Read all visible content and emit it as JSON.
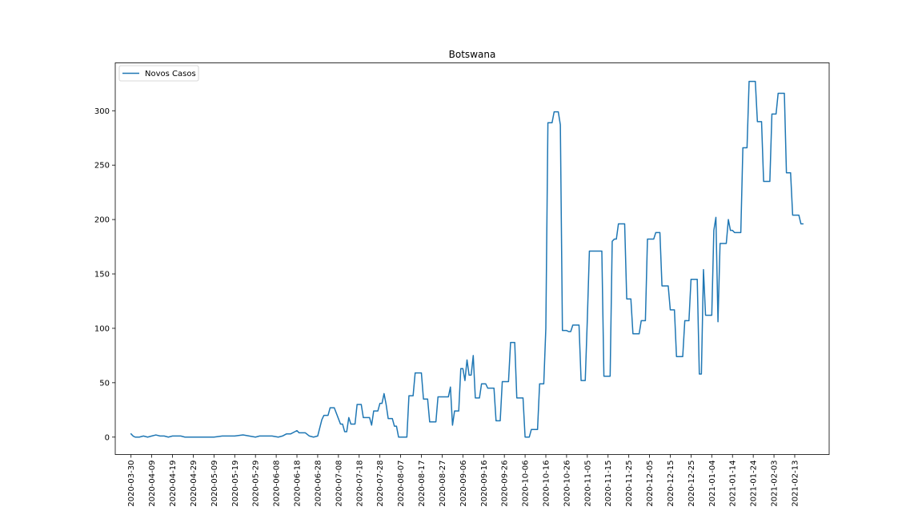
{
  "chart_data": {
    "type": "line",
    "title": "Botswana",
    "xlabel": "",
    "ylabel": "",
    "legend": {
      "position": "top-left",
      "entries": [
        "Novos Casos"
      ]
    },
    "grid": false,
    "x_start": "2020-03-30",
    "x_end": "2021-02-22",
    "x_ticks": [
      "2020-03-30",
      "2020-04-09",
      "2020-04-19",
      "2020-04-29",
      "2020-05-09",
      "2020-05-19",
      "2020-05-29",
      "2020-06-08",
      "2020-06-18",
      "2020-06-28",
      "2020-07-08",
      "2020-07-18",
      "2020-07-28",
      "2020-08-07",
      "2020-08-17",
      "2020-08-27",
      "2020-09-06",
      "2020-09-16",
      "2020-09-26",
      "2020-10-06",
      "2020-10-16",
      "2020-10-26",
      "2020-11-05",
      "2020-11-15",
      "2020-11-25",
      "2020-12-05",
      "2020-12-15",
      "2020-12-25",
      "2021-01-04",
      "2021-01-14",
      "2021-01-24",
      "2021-02-03",
      "2021-02-13"
    ],
    "y_ticks": [
      0,
      50,
      100,
      150,
      200,
      250,
      300
    ],
    "ylim": [
      -16,
      344
    ],
    "series": [
      {
        "name": "Novos Casos",
        "color": "#1f77b4",
        "points": [
          [
            "2020-03-30",
            3
          ],
          [
            "2020-03-31",
            1
          ],
          [
            "2020-04-01",
            0
          ],
          [
            "2020-04-03",
            0
          ],
          [
            "2020-04-05",
            1
          ],
          [
            "2020-04-07",
            0
          ],
          [
            "2020-04-09",
            1
          ],
          [
            "2020-04-11",
            2
          ],
          [
            "2020-04-13",
            1
          ],
          [
            "2020-04-15",
            1
          ],
          [
            "2020-04-17",
            0
          ],
          [
            "2020-04-19",
            1
          ],
          [
            "2020-04-21",
            1
          ],
          [
            "2020-04-23",
            1
          ],
          [
            "2020-04-25",
            0
          ],
          [
            "2020-04-29",
            0
          ],
          [
            "2020-05-09",
            0
          ],
          [
            "2020-05-13",
            1
          ],
          [
            "2020-05-19",
            1
          ],
          [
            "2020-05-23",
            2
          ],
          [
            "2020-05-29",
            0
          ],
          [
            "2020-05-31",
            1
          ],
          [
            "2020-06-06",
            1
          ],
          [
            "2020-06-09",
            0
          ],
          [
            "2020-06-11",
            1
          ],
          [
            "2020-06-13",
            3
          ],
          [
            "2020-06-15",
            3
          ],
          [
            "2020-06-17",
            5
          ],
          [
            "2020-06-18",
            6
          ],
          [
            "2020-06-19",
            4
          ],
          [
            "2020-06-22",
            4
          ],
          [
            "2020-06-24",
            1
          ],
          [
            "2020-06-26",
            0
          ],
          [
            "2020-06-28",
            1
          ],
          [
            "2020-06-30",
            16
          ],
          [
            "2020-07-01",
            20
          ],
          [
            "2020-07-03",
            20
          ],
          [
            "2020-07-04",
            27
          ],
          [
            "2020-07-06",
            27
          ],
          [
            "2020-07-08",
            17
          ],
          [
            "2020-07-09",
            12
          ],
          [
            "2020-07-10",
            12
          ],
          [
            "2020-07-11",
            5
          ],
          [
            "2020-07-12",
            5
          ],
          [
            "2020-07-13",
            18
          ],
          [
            "2020-07-14",
            12
          ],
          [
            "2020-07-16",
            12
          ],
          [
            "2020-07-17",
            30
          ],
          [
            "2020-07-19",
            30
          ],
          [
            "2020-07-20",
            18
          ],
          [
            "2020-07-23",
            18
          ],
          [
            "2020-07-24",
            11
          ],
          [
            "2020-07-25",
            24
          ],
          [
            "2020-07-27",
            24
          ],
          [
            "2020-07-28",
            31
          ],
          [
            "2020-07-29",
            31
          ],
          [
            "2020-07-30",
            40
          ],
          [
            "2020-07-31",
            30
          ],
          [
            "2020-08-01",
            17
          ],
          [
            "2020-08-03",
            17
          ],
          [
            "2020-08-04",
            10
          ],
          [
            "2020-08-05",
            10
          ],
          [
            "2020-08-06",
            0
          ],
          [
            "2020-08-10",
            0
          ],
          [
            "2020-08-11",
            38
          ],
          [
            "2020-08-13",
            38
          ],
          [
            "2020-08-14",
            59
          ],
          [
            "2020-08-17",
            59
          ],
          [
            "2020-08-18",
            35
          ],
          [
            "2020-08-20",
            35
          ],
          [
            "2020-08-21",
            14
          ],
          [
            "2020-08-24",
            14
          ],
          [
            "2020-08-25",
            37
          ],
          [
            "2020-08-30",
            37
          ],
          [
            "2020-08-31",
            46
          ],
          [
            "2020-09-01",
            11
          ],
          [
            "2020-09-02",
            24
          ],
          [
            "2020-09-04",
            24
          ],
          [
            "2020-09-05",
            63
          ],
          [
            "2020-09-06",
            63
          ],
          [
            "2020-09-07",
            52
          ],
          [
            "2020-09-08",
            71
          ],
          [
            "2020-09-09",
            57
          ],
          [
            "2020-09-10",
            57
          ],
          [
            "2020-09-11",
            75
          ],
          [
            "2020-09-12",
            36
          ],
          [
            "2020-09-14",
            36
          ],
          [
            "2020-09-15",
            49
          ],
          [
            "2020-09-17",
            49
          ],
          [
            "2020-09-18",
            45
          ],
          [
            "2020-09-21",
            45
          ],
          [
            "2020-09-22",
            15
          ],
          [
            "2020-09-24",
            15
          ],
          [
            "2020-09-25",
            51
          ],
          [
            "2020-09-28",
            51
          ],
          [
            "2020-09-29",
            87
          ],
          [
            "2020-10-01",
            87
          ],
          [
            "2020-10-02",
            36
          ],
          [
            "2020-10-05",
            36
          ],
          [
            "2020-10-06",
            0
          ],
          [
            "2020-10-08",
            0
          ],
          [
            "2020-10-09",
            7
          ],
          [
            "2020-10-12",
            7
          ],
          [
            "2020-10-13",
            49
          ],
          [
            "2020-10-15",
            49
          ],
          [
            "2020-10-16",
            100
          ],
          [
            "2020-10-17",
            289
          ],
          [
            "2020-10-19",
            289
          ],
          [
            "2020-10-20",
            299
          ],
          [
            "2020-10-22",
            299
          ],
          [
            "2020-10-23",
            287
          ],
          [
            "2020-10-24",
            98
          ],
          [
            "2020-10-26",
            98
          ],
          [
            "2020-10-27",
            97
          ],
          [
            "2020-10-28",
            97
          ],
          [
            "2020-10-29",
            103
          ],
          [
            "2020-11-01",
            103
          ],
          [
            "2020-11-02",
            52
          ],
          [
            "2020-11-04",
            52
          ],
          [
            "2020-11-05",
            108
          ],
          [
            "2020-11-06",
            171
          ],
          [
            "2020-11-12",
            171
          ],
          [
            "2020-11-13",
            56
          ],
          [
            "2020-11-16",
            56
          ],
          [
            "2020-11-17",
            180
          ],
          [
            "2020-11-18",
            182
          ],
          [
            "2020-11-19",
            182
          ],
          [
            "2020-11-20",
            196
          ],
          [
            "2020-11-23",
            196
          ],
          [
            "2020-11-24",
            127
          ],
          [
            "2020-11-26",
            127
          ],
          [
            "2020-11-27",
            95
          ],
          [
            "2020-11-30",
            95
          ],
          [
            "2020-12-01",
            107
          ],
          [
            "2020-12-03",
            107
          ],
          [
            "2020-12-04",
            182
          ],
          [
            "2020-12-07",
            182
          ],
          [
            "2020-12-08",
            188
          ],
          [
            "2020-12-10",
            188
          ],
          [
            "2020-12-11",
            139
          ],
          [
            "2020-12-14",
            139
          ],
          [
            "2020-12-15",
            117
          ],
          [
            "2020-12-17",
            117
          ],
          [
            "2020-12-18",
            74
          ],
          [
            "2020-12-21",
            74
          ],
          [
            "2020-12-22",
            107
          ],
          [
            "2020-12-24",
            107
          ],
          [
            "2020-12-25",
            145
          ],
          [
            "2020-12-28",
            145
          ],
          [
            "2020-12-29",
            58
          ],
          [
            "2020-12-30",
            58
          ],
          [
            "2020-12-31",
            154
          ],
          [
            "2021-01-01",
            112
          ],
          [
            "2021-01-04",
            112
          ],
          [
            "2021-01-05",
            190
          ],
          [
            "2021-01-06",
            202
          ],
          [
            "2021-01-07",
            106
          ],
          [
            "2021-01-08",
            178
          ],
          [
            "2021-01-11",
            178
          ],
          [
            "2021-01-12",
            200
          ],
          [
            "2021-01-13",
            190
          ],
          [
            "2021-01-14",
            190
          ],
          [
            "2021-01-15",
            188
          ],
          [
            "2021-01-18",
            188
          ],
          [
            "2021-01-19",
            266
          ],
          [
            "2021-01-21",
            266
          ],
          [
            "2021-01-22",
            327
          ],
          [
            "2021-01-25",
            327
          ],
          [
            "2021-01-26",
            290
          ],
          [
            "2021-01-28",
            290
          ],
          [
            "2021-01-29",
            235
          ],
          [
            "2021-02-01",
            235
          ],
          [
            "2021-02-02",
            297
          ],
          [
            "2021-02-04",
            297
          ],
          [
            "2021-02-05",
            316
          ],
          [
            "2021-02-08",
            316
          ],
          [
            "2021-02-09",
            243
          ],
          [
            "2021-02-11",
            243
          ],
          [
            "2021-02-12",
            204
          ],
          [
            "2021-02-15",
            204
          ],
          [
            "2021-02-16",
            196
          ],
          [
            "2021-02-17",
            196
          ]
        ]
      }
    ]
  }
}
